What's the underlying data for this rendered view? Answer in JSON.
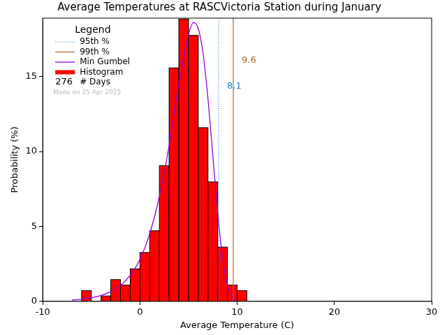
{
  "chart_data": {
    "type": "histogram",
    "title": "Average Temperatures at RASCVictoria Station during January",
    "x_label": "Average Temperature (C)",
    "y_label": "Probability (%)",
    "xlim": [
      -10,
      30
    ],
    "xticks": [
      -10,
      0,
      10,
      20,
      30
    ],
    "ylim": [
      0,
      18.9
    ],
    "yticks": [
      0,
      5,
      10,
      15
    ],
    "grid": false,
    "legend": "upper left",
    "legend_title": "Legend",
    "bins": [
      -6,
      -5,
      -4,
      -3,
      -2,
      -1,
      0,
      1,
      2,
      3,
      4,
      5,
      6,
      7,
      8,
      9,
      10,
      11
    ],
    "series": [
      {
        "name": "Histogram",
        "type": "bar",
        "color": "#ff0000",
        "values": [
          0.72,
          0,
          0.36,
          1.45,
          1.09,
          2.17,
          3.26,
          4.71,
          9.06,
          15.58,
          18.84,
          17.75,
          11.59,
          7.97,
          3.62,
          1.09,
          0.72
        ]
      },
      {
        "name": "Min Gumbel",
        "type": "line",
        "color": "#9400d3",
        "line_style": "solid",
        "x": [
          -7,
          -6,
          -5,
          -4,
          -3,
          -2,
          -1,
          0,
          1,
          2,
          3,
          4,
          5,
          5.5,
          6,
          6.5,
          7,
          7.5,
          8,
          8.5,
          9,
          9.5,
          10
        ],
        "values": [
          0.09,
          0.14,
          0.24,
          0.39,
          0.65,
          1.06,
          1.74,
          2.8,
          4.5,
          7.0,
          10.4,
          14.5,
          17.8,
          18.6,
          18.2,
          16.5,
          13.5,
          9.7,
          5.9,
          2.9,
          1.06,
          0.28,
          0.05
        ]
      }
    ],
    "lines": [
      {
        "name": "95th %",
        "value": 8.1,
        "color": "#1e7fe0",
        "line_style": "dotted"
      },
      {
        "name": "99th %",
        "value": 9.6,
        "color": "#b0642a",
        "line_style": "solid"
      }
    ],
    "days": 276,
    "days_label": "# Days",
    "note": "Made on 25 Apr 2025"
  }
}
